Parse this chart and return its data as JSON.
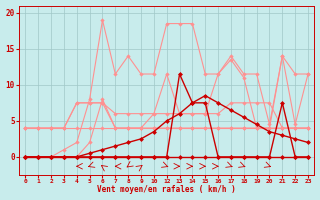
{
  "title": "",
  "xlabel": "Vent moyen/en rafales ( km/h )",
  "background_color": "#c8ecec",
  "grid_color": "#a0c8c8",
  "ylim": [
    -2.5,
    21
  ],
  "yticks": [
    0,
    5,
    10,
    15,
    20
  ],
  "xlim": [
    -0.5,
    22.5
  ],
  "x_positions": [
    0,
    1,
    2,
    3,
    4,
    5,
    6,
    7,
    8,
    9,
    10,
    11,
    12,
    13,
    14,
    15,
    16,
    17,
    18,
    19,
    20,
    21,
    22
  ],
  "x_labels": [
    "0",
    "1",
    "2",
    "3",
    "4",
    "5",
    "6",
    "7",
    "8",
    "9",
    "10",
    "12",
    "13",
    "14",
    "15",
    "16",
    "17",
    "18",
    "19",
    "20",
    "21",
    "22",
    "23"
  ],
  "tick_color": "#cc0000",
  "label_color": "#cc0000",
  "series_light": [
    {
      "x": [
        0,
        1,
        2,
        3,
        4,
        5,
        6,
        7,
        8,
        9,
        10,
        11,
        12,
        13,
        14,
        15,
        16,
        17,
        18,
        19,
        20,
        21,
        22
      ],
      "y": [
        4,
        4,
        4,
        4,
        4,
        4,
        4,
        4,
        4,
        4,
        4,
        4,
        4,
        4,
        4,
        4,
        4,
        4,
        4,
        4,
        4,
        4,
        4
      ]
    },
    {
      "x": [
        0,
        1,
        2,
        3,
        4,
        5,
        6,
        7,
        8,
        9,
        10,
        11,
        12,
        13,
        14,
        15,
        16,
        17,
        18,
        19,
        20,
        21,
        22
      ],
      "y": [
        4,
        4,
        4,
        4,
        7.5,
        7.5,
        7.5,
        4,
        4,
        4,
        4,
        4,
        4,
        4,
        4,
        4,
        4,
        4,
        4,
        4,
        4,
        4,
        4
      ]
    },
    {
      "x": [
        0,
        1,
        2,
        3,
        4,
        5,
        6,
        7,
        8,
        9,
        10,
        11,
        12,
        13,
        14,
        15,
        16,
        17,
        18,
        19,
        20,
        21,
        22
      ],
      "y": [
        4,
        4,
        4,
        4,
        7.5,
        7.5,
        7.5,
        6,
        6,
        6,
        6,
        6,
        6,
        6,
        6,
        6,
        7.5,
        7.5,
        7.5,
        7.5,
        4,
        4,
        4
      ]
    },
    {
      "x": [
        0,
        1,
        2,
        3,
        4,
        5,
        6,
        7,
        8,
        9,
        10,
        11,
        12,
        13,
        14,
        15,
        16,
        17,
        18,
        19,
        20,
        21,
        22
      ],
      "y": [
        0,
        0,
        0,
        0,
        0,
        2,
        8,
        4,
        4,
        4,
        6,
        11.5,
        6,
        6,
        6,
        11.5,
        13.5,
        11,
        4,
        4,
        14,
        11.5,
        11.5
      ]
    },
    {
      "x": [
        0,
        1,
        2,
        3,
        4,
        5,
        6,
        7,
        8,
        9,
        10,
        11,
        12,
        13,
        14,
        15,
        16,
        17,
        18,
        19,
        20,
        21,
        22
      ],
      "y": [
        0,
        0,
        0,
        1,
        2,
        8,
        19,
        11.5,
        14,
        11.5,
        11.5,
        18.5,
        18.5,
        18.5,
        11.5,
        11.5,
        14,
        11.5,
        11.5,
        4.5,
        14,
        4.5,
        11.5
      ]
    }
  ],
  "series_dark": [
    {
      "x": [
        0,
        1,
        2,
        3,
        4,
        5,
        6,
        7,
        8,
        9,
        10,
        11,
        12,
        13,
        14,
        15,
        16,
        17,
        18,
        19,
        20,
        21,
        22
      ],
      "y": [
        0,
        0,
        0,
        0,
        0,
        0,
        0,
        0,
        0,
        0,
        0,
        0,
        0,
        0,
        0,
        0,
        0,
        0,
        0,
        0,
        0,
        0,
        0
      ]
    },
    {
      "x": [
        0,
        1,
        2,
        3,
        4,
        5,
        6,
        7,
        8,
        9,
        10,
        11,
        12,
        13,
        14,
        15,
        16,
        17,
        18,
        19,
        20,
        21,
        22
      ],
      "y": [
        0,
        0,
        0,
        0,
        0,
        0,
        0,
        0,
        0,
        0,
        0,
        0,
        11.5,
        7.5,
        7.5,
        0,
        0,
        0,
        0,
        0,
        7.5,
        0,
        0
      ]
    },
    {
      "x": [
        0,
        1,
        2,
        3,
        4,
        5,
        6,
        7,
        8,
        9,
        10,
        11,
        12,
        13,
        14,
        15,
        16,
        17,
        18,
        19,
        20,
        21,
        22
      ],
      "y": [
        0,
        0,
        0,
        0,
        0,
        0.5,
        1.0,
        1.5,
        2.0,
        2.5,
        3.5,
        5.0,
        6.0,
        7.5,
        8.5,
        7.5,
        6.5,
        5.5,
        4.5,
        3.5,
        3.0,
        2.5,
        2.0
      ]
    }
  ],
  "light_color": "#ff9090",
  "dark_color": "#cc0000",
  "wind_arrows": [
    {
      "x": 4,
      "dir": "left"
    },
    {
      "x": 5,
      "dir": "left_down"
    },
    {
      "x": 6,
      "dir": "up_left"
    },
    {
      "x": 7,
      "dir": "left"
    },
    {
      "x": 8,
      "dir": "down_left"
    },
    {
      "x": 9,
      "dir": "up_right"
    },
    {
      "x": 11,
      "dir": "right_down"
    },
    {
      "x": 12,
      "dir": "right"
    },
    {
      "x": 13,
      "dir": "right"
    },
    {
      "x": 14,
      "dir": "right"
    },
    {
      "x": 15,
      "dir": "right"
    },
    {
      "x": 16,
      "dir": "right_down"
    },
    {
      "x": 17,
      "dir": "right_down"
    },
    {
      "x": 19,
      "dir": "right_down"
    }
  ]
}
